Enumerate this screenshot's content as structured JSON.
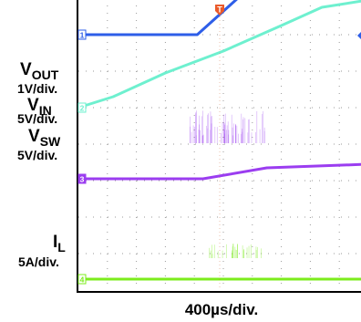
{
  "chart_data": {
    "type": "line",
    "title": "",
    "xlabel": "400µs/div.",
    "x_divisions": 10,
    "y_divisions": 8,
    "grid": true,
    "trigger_marker": "T",
    "series": [
      {
        "name": "V_OUT",
        "label_main": "V",
        "label_sub": "OUT",
        "scale": "1V/div.",
        "channel": "1",
        "color": "#2e5ee8",
        "points": [
          [
            0,
            7.0
          ],
          [
            4.1,
            7.0
          ],
          [
            6.9,
            9.0
          ],
          [
            10,
            9.0
          ]
        ]
      },
      {
        "name": "V_IN",
        "label_main": "V",
        "label_sub": "IN",
        "scale": "5V/div.",
        "channel": "2",
        "color": "#6ef0cf",
        "points": [
          [
            0,
            5.0
          ],
          [
            1.2,
            5.3
          ],
          [
            3.0,
            5.95
          ],
          [
            5.0,
            6.55
          ],
          [
            7.0,
            7.25
          ],
          [
            8.4,
            7.75
          ],
          [
            10,
            7.95
          ]
        ]
      },
      {
        "name": "V_SW",
        "label_main": "V",
        "label_sub": "SW",
        "scale": "5V/div.",
        "channel": "3",
        "color": "#9b3df0",
        "points": [
          [
            0,
            3.05
          ],
          [
            4.3,
            3.05
          ],
          [
            6.5,
            3.35
          ],
          [
            10,
            3.45
          ]
        ]
      },
      {
        "name": "I_L",
        "label_main": "I",
        "label_sub": "L",
        "scale": "5A/div.",
        "channel": "4",
        "color": "#7cec1c",
        "points": [
          [
            0,
            0.3
          ],
          [
            10,
            0.3
          ]
        ]
      }
    ]
  }
}
